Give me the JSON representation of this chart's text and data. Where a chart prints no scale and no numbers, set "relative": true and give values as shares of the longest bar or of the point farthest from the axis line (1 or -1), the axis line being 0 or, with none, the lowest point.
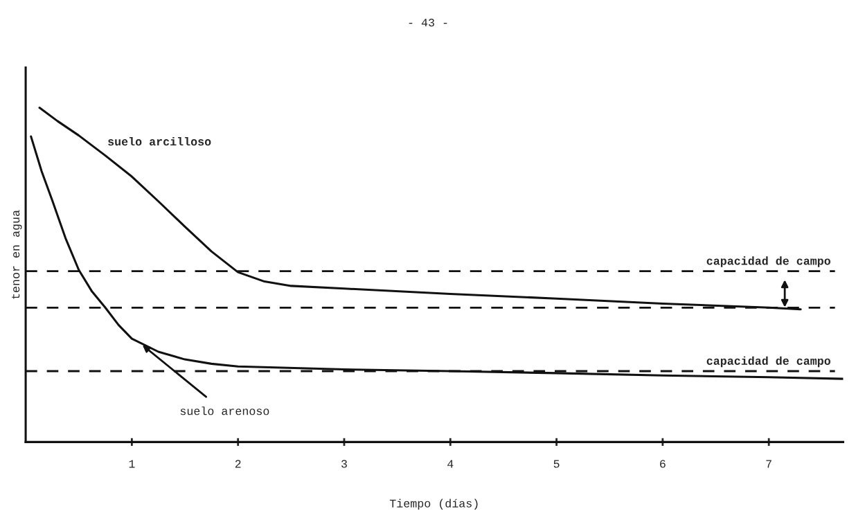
{
  "chart_data": {
    "type": "line",
    "relative": true,
    "xlabel": "Tiempo (días)",
    "ylabel": "tenor en agua",
    "xlim": [
      0,
      7.7
    ],
    "xticks": [
      1,
      2,
      3,
      4,
      5,
      6,
      7
    ],
    "grid": false,
    "legend": false,
    "marker": "none",
    "line_style": "solid",
    "series": [
      {
        "color": "#111111",
        "x": [
          0.13,
          0.3,
          0.5,
          0.75,
          1.0,
          1.25,
          1.5,
          1.75,
          2.0,
          2.25,
          2.5,
          3,
          4,
          5,
          6,
          7,
          7.3
        ],
        "values": [
          1,
          0.96,
          0.917,
          0.857,
          0.794,
          0.72,
          0.644,
          0.57,
          0.508,
          0.48,
          0.467,
          0.459,
          0.443,
          0.429,
          0.414,
          0.402,
          0.397
        ]
      },
      {
        "color": "#111111",
        "x": [
          0.05,
          0.15,
          0.25,
          0.375,
          0.5,
          0.625,
          0.75,
          0.875,
          1.0,
          1.25,
          1.5,
          1.75,
          2,
          3,
          4,
          5,
          6,
          7,
          7.7
        ],
        "values": [
          0.914,
          0.81,
          0.723,
          0.61,
          0.515,
          0.45,
          0.402,
          0.35,
          0.309,
          0.27,
          0.247,
          0.234,
          0.226,
          0.217,
          0.212,
          0.206,
          0.199,
          0.194,
          0.189
        ]
      }
    ],
    "ref_lines": [
      {
        "axis": "y",
        "value": 0.511,
        "label": "capacidad de campo",
        "color": "#111111",
        "line_style": "dashed"
      },
      {
        "axis": "y",
        "value": 0.402,
        "color": "#111111",
        "line_style": "dashed"
      },
      {
        "axis": "y",
        "value": 0.212,
        "label": "capacidad de campo",
        "color": "#111111",
        "line_style": "dashed"
      }
    ],
    "annotations": [
      "- 43 -",
      "suelo arcilloso",
      {
        "text": "suelo arenoso",
        "x": 1.1,
        "y": 0.29
      }
    ]
  }
}
